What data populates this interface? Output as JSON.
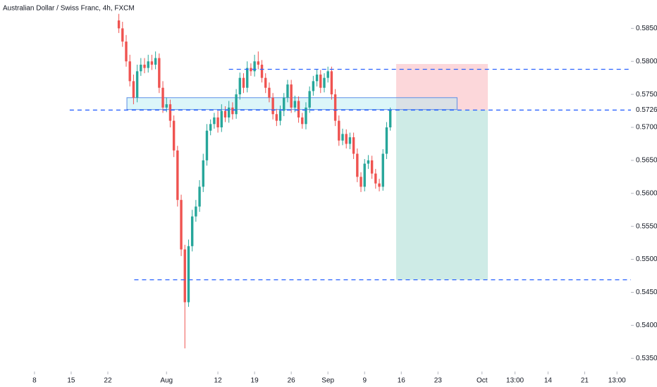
{
  "chart_data": {
    "type": "candlestick",
    "title": "Australian Dollar / Swiss Franc, 4h, FXCM",
    "xlim": [
      -4.7,
      81.3
    ],
    "ylim": [
      0.533,
      0.5893
    ],
    "xticks": [
      {
        "value": 0,
        "label": "8"
      },
      {
        "value": 5,
        "label": "15"
      },
      {
        "value": 10,
        "label": "22"
      },
      {
        "value": 18,
        "label": "Aug"
      },
      {
        "value": 25,
        "label": "12"
      },
      {
        "value": 30,
        "label": "19"
      },
      {
        "value": 35,
        "label": "26"
      },
      {
        "value": 40,
        "label": "Sep"
      },
      {
        "value": 45,
        "label": "9"
      },
      {
        "value": 50,
        "label": "16"
      },
      {
        "value": 55,
        "label": "23"
      },
      {
        "value": 61,
        "label": "Oct"
      },
      {
        "value": 65.5,
        "label": "13:00"
      },
      {
        "value": 70,
        "label": "14"
      },
      {
        "value": 75,
        "label": "21"
      },
      {
        "value": 79.4,
        "label": "13:00"
      }
    ],
    "yticks": [
      {
        "value": 0.585,
        "label": "0.58500"
      },
      {
        "value": 0.58,
        "label": "0.58000"
      },
      {
        "value": 0.575,
        "label": "0.57500"
      },
      {
        "value": 0.57,
        "label": "0.57000"
      },
      {
        "value": 0.565,
        "label": "0.56500"
      },
      {
        "value": 0.56,
        "label": "0.56000"
      },
      {
        "value": 0.555,
        "label": "0.55500"
      },
      {
        "value": 0.55,
        "label": "0.55000"
      },
      {
        "value": 0.545,
        "label": "0.54500"
      },
      {
        "value": 0.54,
        "label": "0.54000"
      },
      {
        "value": 0.535,
        "label": "0.53500"
      }
    ],
    "up_color": "#26a69a",
    "down_color": "#ef5350",
    "x": [
      11.5,
      12,
      12.5,
      13,
      13.5,
      14,
      14.5,
      15,
      15.5,
      16,
      16.5,
      17,
      17.5,
      18,
      18.5,
      19,
      19.5,
      20,
      20.5,
      21,
      21.5,
      22,
      22.5,
      23,
      23.5,
      24,
      24.5,
      25,
      25.5,
      26,
      26.5,
      27,
      27.5,
      28,
      28.5,
      29,
      29.5,
      30,
      30.5,
      31,
      31.5,
      32,
      32.5,
      33,
      33.5,
      34,
      34.5,
      35,
      35.5,
      36,
      36.5,
      37,
      37.5,
      38,
      38.5,
      39,
      39.5,
      40,
      40.5,
      41,
      41.5,
      42,
      42.5,
      43,
      43.5,
      44,
      44.5,
      45,
      45.5,
      46,
      46.5,
      47,
      47.5,
      48,
      48.5
    ],
    "open": [
      0.5862,
      0.585,
      0.583,
      0.58,
      0.577,
      0.5745,
      0.5785,
      0.5795,
      0.579,
      0.58,
      0.5795,
      0.5805,
      0.576,
      0.573,
      0.5735,
      0.571,
      0.5665,
      0.559,
      0.5515,
      0.5435,
      0.552,
      0.5565,
      0.558,
      0.561,
      0.565,
      0.5695,
      0.5705,
      0.5715,
      0.57,
      0.5725,
      0.5715,
      0.573,
      0.572,
      0.575,
      0.5775,
      0.576,
      0.579,
      0.5785,
      0.58,
      0.5795,
      0.5775,
      0.576,
      0.5745,
      0.572,
      0.571,
      0.5725,
      0.5745,
      0.5765,
      0.573,
      0.574,
      0.5715,
      0.5705,
      0.573,
      0.5755,
      0.577,
      0.578,
      0.576,
      0.5775,
      0.5785,
      0.575,
      0.571,
      0.568,
      0.569,
      0.5675,
      0.5685,
      0.566,
      0.5625,
      0.561,
      0.5645,
      0.565,
      0.563,
      0.5615,
      0.561,
      0.566,
      0.57
    ],
    "high": [
      0.5872,
      0.586,
      0.584,
      0.581,
      0.578,
      0.5795,
      0.5805,
      0.5805,
      0.581,
      0.581,
      0.5815,
      0.5812,
      0.577,
      0.5745,
      0.5742,
      0.5718,
      0.5672,
      0.5598,
      0.5522,
      0.553,
      0.5575,
      0.559,
      0.562,
      0.566,
      0.5705,
      0.5712,
      0.5722,
      0.5725,
      0.5735,
      0.5732,
      0.574,
      0.5738,
      0.5758,
      0.5783,
      0.5782,
      0.58,
      0.5797,
      0.581,
      0.5815,
      0.5802,
      0.5782,
      0.5768,
      0.5752,
      0.5728,
      0.5733,
      0.5752,
      0.5772,
      0.5772,
      0.5748,
      0.5747,
      0.5722,
      0.5738,
      0.5762,
      0.5778,
      0.5788,
      0.5787,
      0.5782,
      0.5792,
      0.5792,
      0.5758,
      0.5718,
      0.5698,
      0.5697,
      0.5692,
      0.5692,
      0.5668,
      0.5632,
      0.5652,
      0.5658,
      0.5657,
      0.5637,
      0.5622,
      0.5667,
      0.5708,
      0.573
    ],
    "low": [
      0.5843,
      0.5822,
      0.5792,
      0.5762,
      0.5735,
      0.5738,
      0.5778,
      0.5782,
      0.5783,
      0.5787,
      0.5788,
      0.5752,
      0.5722,
      0.5723,
      0.57,
      0.5655,
      0.558,
      0.5505,
      0.5365,
      0.5428,
      0.5512,
      0.5557,
      0.5572,
      0.5602,
      0.5642,
      0.5688,
      0.5698,
      0.5692,
      0.5693,
      0.5708,
      0.5707,
      0.5712,
      0.5713,
      0.5742,
      0.5752,
      0.5753,
      0.5778,
      0.5777,
      0.5788,
      0.5768,
      0.5752,
      0.5738,
      0.5712,
      0.5702,
      0.5703,
      0.5717,
      0.5738,
      0.5722,
      0.5723,
      0.5707,
      0.5698,
      0.5697,
      0.5722,
      0.5748,
      0.5762,
      0.5752,
      0.5753,
      0.5768,
      0.5742,
      0.5702,
      0.5672,
      0.5673,
      0.5668,
      0.5667,
      0.5652,
      0.5617,
      0.5602,
      0.5603,
      0.5637,
      0.5622,
      0.5607,
      0.5603,
      0.5604,
      0.5652,
      0.5695
    ],
    "close": [
      0.585,
      0.583,
      0.58,
      0.577,
      0.5745,
      0.5785,
      0.5795,
      0.579,
      0.58,
      0.5795,
      0.5805,
      0.576,
      0.573,
      0.5735,
      0.571,
      0.5665,
      0.559,
      0.5515,
      0.5435,
      0.552,
      0.5565,
      0.558,
      0.561,
      0.565,
      0.5695,
      0.5705,
      0.5715,
      0.57,
      0.5725,
      0.5715,
      0.573,
      0.572,
      0.575,
      0.5775,
      0.576,
      0.579,
      0.5785,
      0.58,
      0.5795,
      0.5775,
      0.576,
      0.5745,
      0.572,
      0.571,
      0.5725,
      0.5745,
      0.5765,
      0.573,
      0.574,
      0.5715,
      0.5705,
      0.573,
      0.5755,
      0.577,
      0.578,
      0.576,
      0.5775,
      0.5785,
      0.575,
      0.571,
      0.568,
      0.569,
      0.5675,
      0.5685,
      0.566,
      0.5625,
      0.561,
      0.5645,
      0.565,
      0.563,
      0.5615,
      0.561,
      0.566,
      0.57,
      0.5726
    ],
    "levels": [
      {
        "value": 0.5788,
        "from": 26.5
      },
      {
        "value": 0.57262,
        "from": 4.8,
        "label": 0.57262
      },
      {
        "value": 0.5469,
        "from": 13.6
      }
    ],
    "zone": {
      "low": 0.5727,
      "high": 0.5745,
      "from": 12.6,
      "to": 57.6
    },
    "position": {
      "from": 49.3,
      "to": 61.8,
      "entry": 0.57262,
      "stop": 0.5796,
      "target": 0.5469
    }
  }
}
